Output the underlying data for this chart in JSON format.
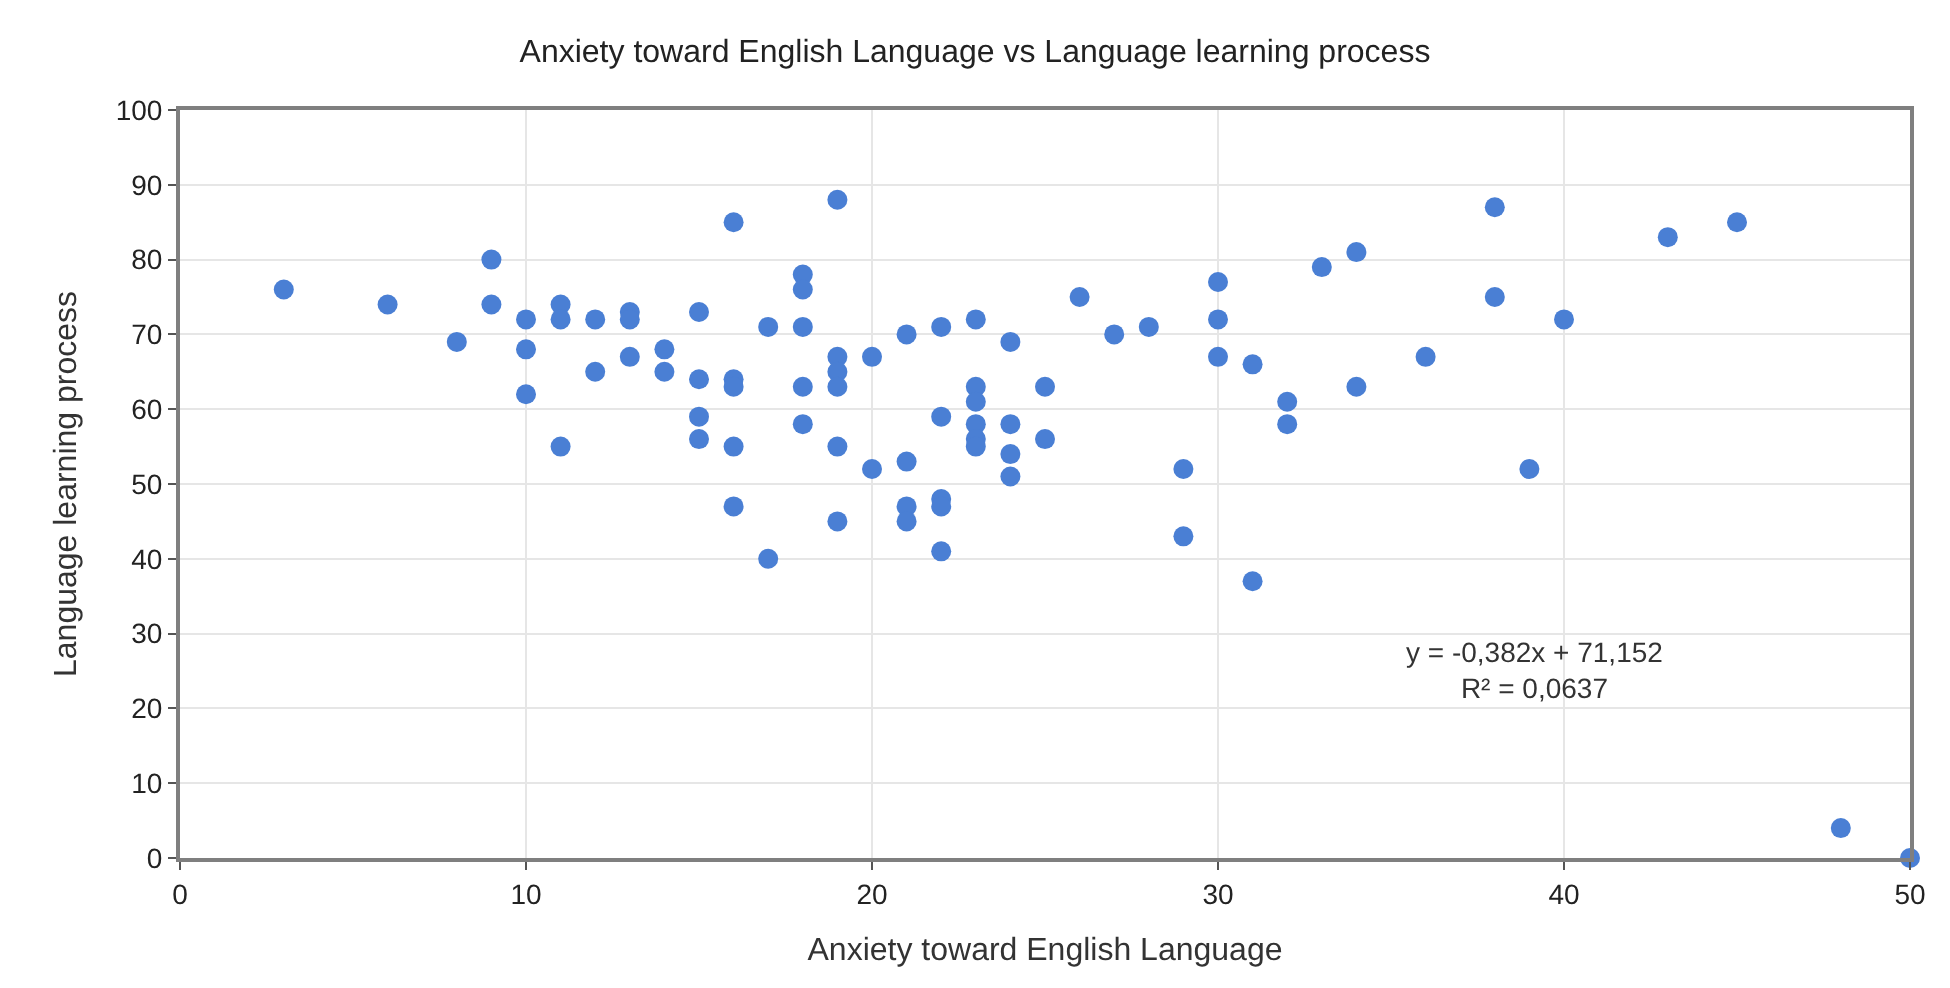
{
  "chart_data": {
    "type": "scatter",
    "title": "Anxiety toward English Language vs Language learning process",
    "xlabel": "Anxiety toward English Language",
    "ylabel": "Language learning process",
    "annotations": [
      "y = -0,382x + 71,152\nR² = 0,0637"
    ],
    "x": [
      3,
      6,
      8,
      9,
      9,
      10,
      10,
      10,
      11,
      11,
      11,
      12,
      12,
      13,
      13,
      13,
      14,
      14,
      15,
      15,
      15,
      15,
      16,
      16,
      16,
      16,
      16,
      17,
      17,
      18,
      18,
      18,
      18,
      18,
      19,
      19,
      19,
      19,
      19,
      19,
      20,
      20,
      21,
      21,
      21,
      21,
      22,
      22,
      22,
      22,
      22,
      23,
      23,
      23,
      23,
      23,
      23,
      24,
      24,
      24,
      24,
      25,
      25,
      26,
      27,
      28,
      29,
      29,
      30,
      30,
      30,
      31,
      31,
      32,
      32,
      33,
      34,
      34,
      36,
      38,
      38,
      39,
      40,
      43,
      45,
      48,
      50
    ],
    "series": [
      {
        "color": "#4a7fd4",
        "values": [
          76,
          74,
          69,
          80,
          74,
          72,
          68,
          62,
          74,
          72,
          55,
          72,
          65,
          73,
          72,
          67,
          68,
          65,
          73,
          64,
          59,
          56,
          85,
          64,
          63,
          55,
          47,
          71,
          40,
          78,
          76,
          71,
          63,
          58,
          88,
          67,
          65,
          63,
          55,
          45,
          67,
          52,
          70,
          53,
          47,
          45,
          71,
          59,
          48,
          47,
          41,
          72,
          63,
          61,
          58,
          56,
          55,
          69,
          58,
          54,
          51,
          63,
          56,
          75,
          70,
          71,
          52,
          43,
          77,
          72,
          67,
          66,
          37,
          61,
          58,
          79,
          81,
          63,
          67,
          87,
          75,
          52,
          72,
          83,
          85,
          4,
          0
        ]
      }
    ],
    "xlim": [
      0,
      50
    ],
    "xticks": [
      0,
      10,
      20,
      30,
      40,
      50
    ],
    "ylim": [
      0,
      100
    ],
    "yticks": [
      0,
      10,
      20,
      30,
      40,
      50,
      60,
      70,
      80,
      90,
      100
    ],
    "grid": true,
    "marker": "circle"
  }
}
